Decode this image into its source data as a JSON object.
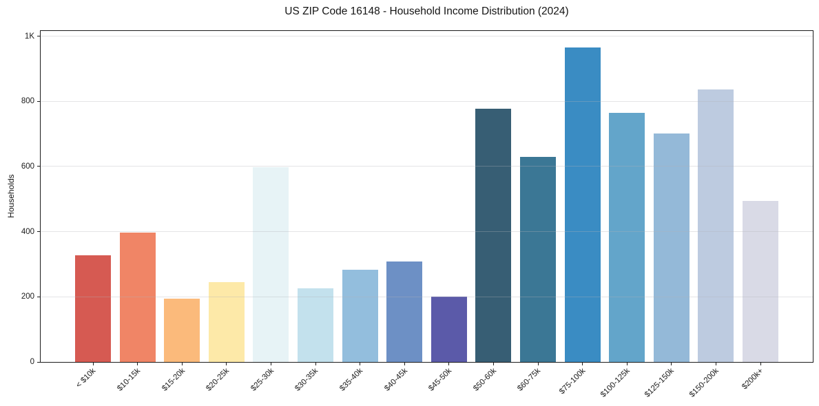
{
  "chart_data": {
    "type": "bar",
    "title": "US ZIP Code 16148 - Household Income Distribution (2024)",
    "xlabel": "",
    "ylabel": "Households",
    "categories": [
      "< $10k",
      "$10-15k",
      "$15-20k",
      "$20-25k",
      "$25-30k",
      "$30-35k",
      "$35-40k",
      "$40-45k",
      "$45-50k",
      "$50-60k",
      "$60-75k",
      "$75-100k",
      "$100-125k",
      "$125-150k",
      "$150-200k",
      "$200k+"
    ],
    "values": [
      328,
      397,
      195,
      246,
      597,
      225,
      283,
      309,
      200,
      777,
      629,
      965,
      764,
      702,
      836,
      495
    ],
    "bar_colors": [
      "#d65a52",
      "#f08566",
      "#fbba7b",
      "#fde9a8",
      "#e7f3f6",
      "#c3e1ed",
      "#93bedd",
      "#6d90c5",
      "#5b5aa9",
      "#375e74",
      "#3b7795",
      "#3a8cc3",
      "#63a5ca",
      "#94b9d8",
      "#bdcbe0",
      "#d9dae6"
    ],
    "ylim": [
      0,
      1016
    ],
    "yticks": [
      {
        "value": 0,
        "label": "0"
      },
      {
        "value": 200,
        "label": "200"
      },
      {
        "value": 400,
        "label": "400"
      },
      {
        "value": 600,
        "label": "600"
      },
      {
        "value": 800,
        "label": "800"
      },
      {
        "value": 1000,
        "label": "1K"
      }
    ],
    "grid": "horizontal-only",
    "gridlines_above_bars": true,
    "x_tick_rotation_deg": 45,
    "legend": "none",
    "background_color": "#ffffff",
    "spine_color": "#1a1a1a",
    "text_color": "#141414"
  }
}
